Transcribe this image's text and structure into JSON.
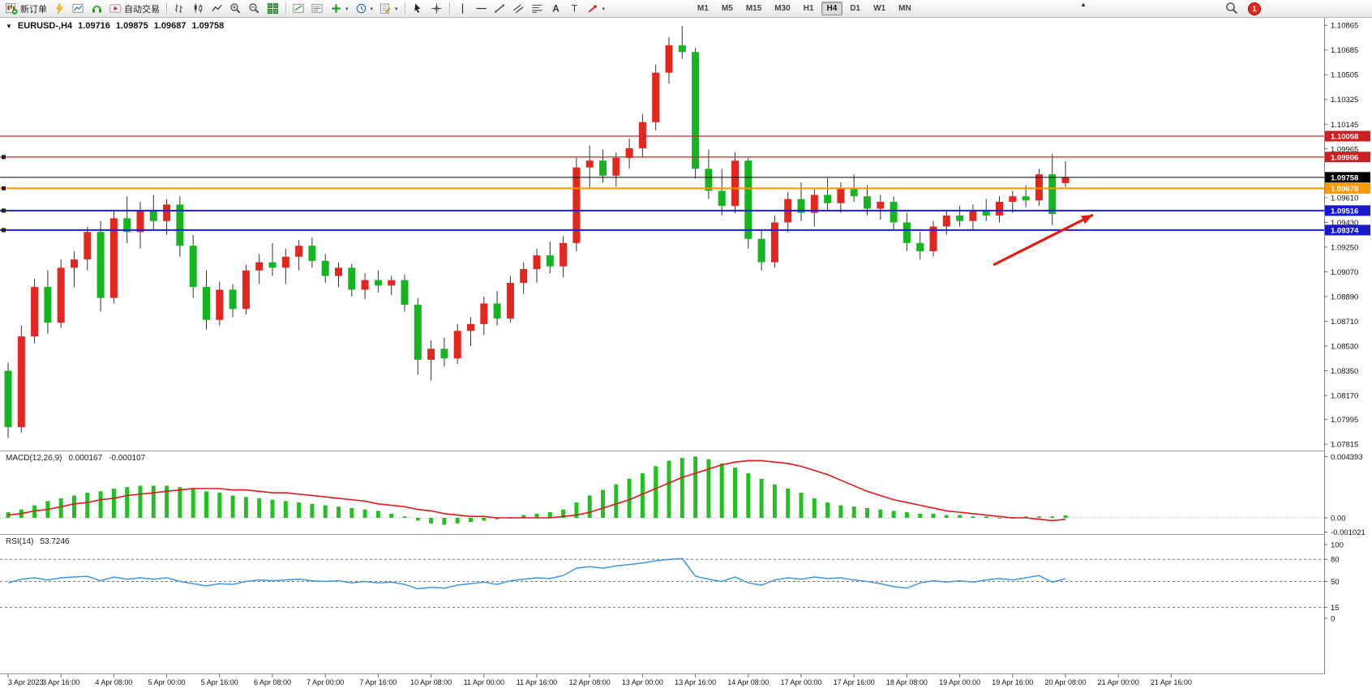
{
  "window": {
    "notification_count": "1"
  },
  "toolbar": {
    "new_order": "新订单",
    "auto_trading": "自动交易",
    "timeframes": [
      "M1",
      "M5",
      "M15",
      "M30",
      "H1",
      "H4",
      "D1",
      "W1",
      "MN"
    ],
    "active_timeframe": "H4"
  },
  "chart_header": {
    "symbol": "EURUSD-,H4",
    "open": "1.09716",
    "high": "1.09875",
    "low": "1.09687",
    "close": "1.09758"
  },
  "indicators": {
    "macd_label": "MACD(12,26,9)",
    "macd_main": "0.000167",
    "macd_signal": "-0.000107",
    "rsi_label": "RSI(14)",
    "rsi_value": "53.7246"
  },
  "chart_data": {
    "type": "candlestick",
    "title": "EURUSD- H4",
    "bars_per_label": 4,
    "x_labels": [
      "3 Apr 2023",
      "3 Apr 16:00",
      "4 Apr 08:00",
      "5 Apr 00:00",
      "5 Apr 16:00",
      "6 Apr 08:00",
      "7 Apr 00:00",
      "7 Apr 16:00",
      "10 Apr 08:00",
      "11 Apr 00:00",
      "11 Apr 16:00",
      "12 Apr 08:00",
      "13 Apr 00:00",
      "13 Apr 16:00",
      "14 Apr 08:00",
      "17 Apr 00:00",
      "17 Apr 16:00",
      "18 Apr 08:00",
      "19 Apr 00:00",
      "19 Apr 16:00",
      "20 Apr 08:00",
      "21 Apr 00:00",
      "21 Apr 16:00"
    ],
    "y_axis": [
      1.10865,
      1.10685,
      1.10505,
      1.10325,
      1.10145,
      1.09965,
      1.0961,
      1.0943,
      1.0925,
      1.0907,
      1.0889,
      1.0871,
      1.0853,
      1.0835,
      1.0817,
      1.07995,
      1.07815
    ],
    "candles": [
      [
        1.0835,
        1.0841,
        1.0786,
        1.0794
      ],
      [
        1.0794,
        1.0868,
        1.079,
        1.086
      ],
      [
        1.086,
        1.0902,
        1.0855,
        1.0896
      ],
      [
        1.0896,
        1.0908,
        1.0862,
        1.087
      ],
      [
        1.087,
        1.0916,
        1.0866,
        1.091
      ],
      [
        1.091,
        1.0922,
        1.0896,
        1.0916
      ],
      [
        1.0916,
        1.094,
        1.0908,
        1.0936
      ],
      [
        1.0936,
        1.0944,
        1.0878,
        1.0888
      ],
      [
        1.0888,
        1.0952,
        1.0884,
        1.0946
      ],
      [
        1.0946,
        1.0962,
        1.0928,
        1.0936
      ],
      [
        1.0936,
        1.0958,
        1.0924,
        1.0952
      ],
      [
        1.0952,
        1.0963,
        1.0938,
        1.0944
      ],
      [
        1.0944,
        1.096,
        1.0934,
        1.0956
      ],
      [
        1.0956,
        1.0962,
        1.0918,
        1.0926
      ],
      [
        1.0926,
        1.0934,
        1.0888,
        1.0896
      ],
      [
        1.0896,
        1.0908,
        1.0865,
        1.0872
      ],
      [
        1.0872,
        1.09,
        1.0868,
        1.0894
      ],
      [
        1.0894,
        1.0898,
        1.0874,
        1.088
      ],
      [
        1.088,
        1.0912,
        1.0876,
        1.0908
      ],
      [
        1.0908,
        1.092,
        1.0898,
        1.0914
      ],
      [
        1.0914,
        1.0928,
        1.0904,
        1.091
      ],
      [
        1.091,
        1.0924,
        1.0898,
        1.0918
      ],
      [
        1.0918,
        1.093,
        1.0908,
        1.0926
      ],
      [
        1.0926,
        1.0932,
        1.091,
        1.0915
      ],
      [
        1.0915,
        1.092,
        1.0899,
        1.0904
      ],
      [
        1.0904,
        1.0914,
        1.0896,
        1.091
      ],
      [
        1.091,
        1.0913,
        1.0889,
        1.0894
      ],
      [
        1.0894,
        1.0906,
        1.0887,
        1.0901
      ],
      [
        1.0901,
        1.0908,
        1.0892,
        1.0897
      ],
      [
        1.0897,
        1.0904,
        1.089,
        1.0901
      ],
      [
        1.0901,
        1.0905,
        1.0878,
        1.0883
      ],
      [
        1.0883,
        1.0888,
        1.0832,
        1.0843
      ],
      [
        1.0843,
        1.0857,
        1.0828,
        1.0851
      ],
      [
        1.0851,
        1.0859,
        1.0838,
        1.0844
      ],
      [
        1.0844,
        1.0869,
        1.084,
        1.0864
      ],
      [
        1.0864,
        1.0874,
        1.0853,
        1.0869
      ],
      [
        1.0869,
        1.0889,
        1.0861,
        1.0884
      ],
      [
        1.0884,
        1.0893,
        1.0868,
        1.0873
      ],
      [
        1.0873,
        1.0904,
        1.087,
        1.0899
      ],
      [
        1.0899,
        1.0914,
        1.0891,
        1.0909
      ],
      [
        1.0909,
        1.0924,
        1.0899,
        1.0919
      ],
      [
        1.0919,
        1.0929,
        1.0906,
        1.0911
      ],
      [
        1.0911,
        1.0933,
        1.0903,
        1.0928
      ],
      [
        1.0928,
        1.099,
        1.0922,
        1.0983
      ],
      [
        1.0983,
        1.0999,
        1.0968,
        1.0988
      ],
      [
        1.0988,
        1.0996,
        1.0972,
        1.0977
      ],
      [
        1.0977,
        1.0994,
        1.0969,
        1.099
      ],
      [
        1.099,
        1.1004,
        1.0982,
        1.0997
      ],
      [
        1.0997,
        1.1022,
        1.099,
        1.1016
      ],
      [
        1.1016,
        1.1058,
        1.101,
        1.1052
      ],
      [
        1.1052,
        1.1078,
        1.1044,
        1.1072
      ],
      [
        1.1072,
        1.1086,
        1.1062,
        1.1067
      ],
      [
        1.1067,
        1.107,
        1.0975,
        1.0982
      ],
      [
        1.0982,
        1.0996,
        1.096,
        1.0966
      ],
      [
        1.0966,
        1.0982,
        1.0948,
        1.0955
      ],
      [
        1.0955,
        1.0994,
        1.095,
        1.0988
      ],
      [
        1.0988,
        1.099,
        1.0924,
        1.0931
      ],
      [
        1.0931,
        1.0938,
        1.0908,
        1.0914
      ],
      [
        1.0914,
        1.0948,
        1.091,
        1.0943
      ],
      [
        1.0943,
        1.0965,
        1.0936,
        1.096
      ],
      [
        1.096,
        1.0972,
        1.0944,
        1.095
      ],
      [
        1.095,
        1.0968,
        1.094,
        1.0963
      ],
      [
        1.0963,
        1.0975,
        1.0952,
        1.0957
      ],
      [
        1.0957,
        1.0972,
        1.095,
        1.0968
      ],
      [
        1.0968,
        1.0978,
        1.0958,
        1.0962
      ],
      [
        1.0962,
        1.097,
        1.0948,
        1.0953
      ],
      [
        1.0953,
        1.0963,
        1.0945,
        1.0958
      ],
      [
        1.0958,
        1.0962,
        1.0938,
        1.0943
      ],
      [
        1.0943,
        1.095,
        1.0922,
        1.0928
      ],
      [
        1.0928,
        1.0936,
        1.0916,
        1.0922
      ],
      [
        1.0922,
        1.0944,
        1.0918,
        1.094
      ],
      [
        1.094,
        1.0952,
        1.0934,
        1.0948
      ],
      [
        1.0948,
        1.0955,
        1.094,
        1.0944
      ],
      [
        1.0944,
        1.0956,
        1.0938,
        1.0952
      ],
      [
        1.0952,
        1.096,
        1.0944,
        1.0948
      ],
      [
        1.0948,
        1.0962,
        1.0943,
        1.0958
      ],
      [
        1.0958,
        1.0966,
        1.095,
        1.0962
      ],
      [
        1.0962,
        1.097,
        1.0954,
        1.0959
      ],
      [
        1.0959,
        1.0982,
        1.0955,
        1.0978
      ],
      [
        1.0978,
        1.0993,
        1.0941,
        1.0949
      ],
      [
        1.09716,
        1.09875,
        1.09687,
        1.09758
      ]
    ],
    "hlines": [
      {
        "price": 1.10058,
        "label": "1.10058",
        "color": "#c62828",
        "width": 1.2,
        "box": "#cc2020",
        "name": "resistance-line-upper",
        "handle": false
      },
      {
        "price": 1.09906,
        "label": "1.09906",
        "color": "#c62828",
        "width": 1.2,
        "box": "#cc2020",
        "name": "resistance-line-lower",
        "handle": true
      },
      {
        "price": 1.09678,
        "label": "1.09678",
        "color": "#ff9800",
        "width": 2,
        "box": "#ff9800",
        "name": "orange-pivot-line",
        "handle": true
      },
      {
        "price": 1.09516,
        "label": "1.09516",
        "color": "#1a1aee",
        "width": 2,
        "box": "#1a1acc",
        "name": "blue-support-line-upper",
        "handle": true
      },
      {
        "price": 1.09374,
        "label": "1.09374",
        "color": "#1a1aee",
        "width": 2,
        "box": "#1a1acc",
        "name": "blue-support-line-lower",
        "handle": true
      }
    ],
    "bid": {
      "price": 1.09758,
      "label": "1.09758"
    },
    "macd": {
      "scale": [
        {
          "v": 0.004393,
          "label": "0.004393"
        },
        {
          "v": 0,
          "label": "0.00"
        },
        {
          "v": -0.001021,
          "label": "-0.001021"
        }
      ],
      "histogram": [
        0.0004,
        0.0006,
        0.0009,
        0.0012,
        0.0014,
        0.0016,
        0.0018,
        0.0019,
        0.0021,
        0.0022,
        0.0023,
        0.0023,
        0.0023,
        0.0022,
        0.0021,
        0.0019,
        0.0018,
        0.0016,
        0.0015,
        0.0014,
        0.0013,
        0.0012,
        0.0011,
        0.001,
        0.0009,
        0.0008,
        0.0007,
        0.0006,
        0.0005,
        0.0003,
        0.0001,
        -0.0002,
        -0.0004,
        -0.0005,
        -0.0004,
        -0.0003,
        -0.0002,
        -0.0001,
        0.0,
        0.0002,
        0.0003,
        0.0004,
        0.0006,
        0.0011,
        0.0016,
        0.002,
        0.0024,
        0.0028,
        0.0032,
        0.0037,
        0.0041,
        0.0043,
        0.0044,
        0.0042,
        0.0039,
        0.0036,
        0.0032,
        0.0028,
        0.0024,
        0.0021,
        0.0018,
        0.0014,
        0.0011,
        0.0009,
        0.0008,
        0.0007,
        0.0006,
        0.0005,
        0.0004,
        0.0003,
        0.0003,
        0.0002,
        0.0002,
        0.0001,
        0.0001,
        0.0,
        0.0,
        0.0001,
        0.0001,
        0.0001,
        0.000167
      ],
      "signal": [
        0.0002,
        0.0003,
        0.0005,
        0.0006,
        0.0008,
        0.001,
        0.0011,
        0.0013,
        0.0014,
        0.0016,
        0.0017,
        0.0018,
        0.0019,
        0.002,
        0.0021,
        0.0021,
        0.0021,
        0.002,
        0.002,
        0.0019,
        0.0018,
        0.0018,
        0.0017,
        0.0016,
        0.0015,
        0.0014,
        0.0013,
        0.0012,
        0.001,
        0.0009,
        0.0008,
        0.0006,
        0.0005,
        0.0003,
        0.0002,
        0.0001,
        0.0001,
        0.0,
        0.0,
        0.0,
        0.0,
        0.0,
        0.0001,
        0.0002,
        0.0004,
        0.0007,
        0.001,
        0.0013,
        0.0017,
        0.0021,
        0.0025,
        0.0029,
        0.0032,
        0.0035,
        0.0038,
        0.004,
        0.0041,
        0.0041,
        0.004,
        0.0039,
        0.0037,
        0.0034,
        0.0031,
        0.0027,
        0.0023,
        0.0019,
        0.0016,
        0.0013,
        0.0011,
        0.0009,
        0.0007,
        0.0005,
        0.0004,
        0.0003,
        0.0002,
        0.0001,
        0.0,
        0.0,
        -0.0001,
        -0.0002,
        -0.000107
      ]
    },
    "rsi": {
      "scale": [
        {
          "v": 100,
          "label": "100"
        },
        {
          "v": 80,
          "label": "80"
        },
        {
          "v": 50,
          "label": "50"
        },
        {
          "v": 15,
          "label": "15"
        },
        {
          "v": 0,
          "label": "0"
        }
      ],
      "level_lines": [
        80,
        50,
        15
      ],
      "series": [
        48,
        53,
        55,
        52,
        55,
        56,
        57,
        51,
        56,
        53,
        55,
        53,
        55,
        50,
        47,
        44,
        47,
        46,
        50,
        52,
        51,
        52,
        53,
        51,
        50,
        51,
        48,
        50,
        48,
        49,
        46,
        40,
        42,
        41,
        45,
        47,
        49,
        46,
        51,
        53,
        55,
        54,
        58,
        68,
        70,
        68,
        71,
        73,
        75,
        78,
        80,
        81,
        57,
        53,
        50,
        56,
        48,
        45,
        52,
        55,
        53,
        56,
        54,
        55,
        52,
        50,
        47,
        43,
        41,
        48,
        51,
        49,
        51,
        49,
        52,
        54,
        52,
        55,
        58,
        49,
        53.7246
      ]
    },
    "arrow": {
      "from": [
        1225,
        307
      ],
      "to": [
        1348,
        245
      ],
      "color": "#e11b12"
    },
    "colors": {
      "up": "#e3261e",
      "down": "#14b51e",
      "wick": "#333333",
      "macd_hist": "#22c122",
      "macd_signal": "#e01818",
      "rsi": "#3f96e0",
      "bid": "#000000"
    }
  }
}
